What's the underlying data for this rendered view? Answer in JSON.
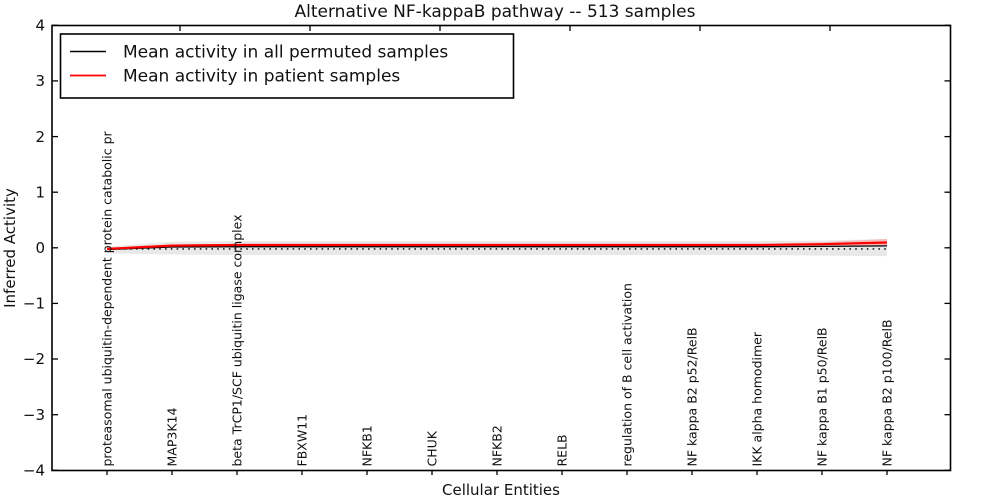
{
  "figure": {
    "background": "#ffffff"
  },
  "chart_data": {
    "type": "line",
    "title": "Alternative NF-kappaB pathway -- 513 samples",
    "xlabel": "Cellular Entities",
    "ylabel": "Inferred Activity",
    "ylim": [
      -4,
      4
    ],
    "yticks": [
      4,
      3,
      2,
      1,
      0,
      -1,
      -2,
      -3,
      -4
    ],
    "ytick_labels": [
      "4",
      "3",
      "2",
      "1",
      "0",
      "−1",
      "−2",
      "−3",
      "−4"
    ],
    "grid": false,
    "categories": [
      "proteasomal ubiquitin-dependent protein catabolic pr",
      "MAP3K14",
      "beta TrCP1/SCF ubiquitin ligase complex",
      "FBXW11",
      "NFKB1",
      "CHUK",
      "NFKB2",
      "RELB",
      "regulation of B cell activation",
      "NF kappa B2 p52/RelB",
      "IKK alpha homodimer",
      "NF kappa B1 p50/RelB",
      "NF kappa B2 p100/RelB"
    ],
    "legend": {
      "position": "upper left",
      "entries": [
        {
          "label": "Mean activity in all permuted samples",
          "color": "#000000",
          "linestyle": "solid"
        },
        {
          "label": "Mean activity in patient samples",
          "color": "#ff0000",
          "linestyle": "solid"
        }
      ]
    },
    "series": [
      {
        "name": "Mean activity in all permuted samples",
        "color": "#000000",
        "linestyle": "solid",
        "values": [
          -0.03,
          0.015,
          0.02,
          0.02,
          0.02,
          0.02,
          0.02,
          0.02,
          0.02,
          0.02,
          0.02,
          0.025,
          0.035
        ]
      },
      {
        "name": "Mean activity in patient samples",
        "color": "#ff0000",
        "linestyle": "solid",
        "values": [
          -0.02,
          0.04,
          0.05,
          0.05,
          0.05,
          0.05,
          0.05,
          0.05,
          0.05,
          0.05,
          0.05,
          0.065,
          0.095
        ]
      }
    ],
    "reference_line": {
      "value": -0.02,
      "color": "#000000",
      "linestyle": "dotted"
    },
    "bands": [
      {
        "name": "permuted-samples-range",
        "color": "#e4e4e4",
        "upper": [
          0.02,
          0.11,
          0.12,
          0.12,
          0.12,
          0.12,
          0.12,
          0.12,
          0.12,
          0.12,
          0.12,
          0.13,
          0.16
        ],
        "lower": [
          -0.1,
          -0.12,
          -0.13,
          -0.13,
          -0.13,
          -0.13,
          -0.13,
          -0.13,
          -0.13,
          -0.13,
          -0.13,
          -0.14,
          -0.15
        ]
      },
      {
        "name": "patient-samples-range",
        "color": "#f6b6b6",
        "upper": [
          0.0,
          0.06,
          0.07,
          0.07,
          0.07,
          0.07,
          0.07,
          0.07,
          0.07,
          0.07,
          0.07,
          0.1,
          0.16
        ],
        "lower": [
          -0.04,
          0.02,
          0.03,
          0.03,
          0.03,
          0.03,
          0.03,
          0.03,
          0.03,
          0.03,
          0.03,
          0.03,
          0.04
        ]
      }
    ]
  }
}
